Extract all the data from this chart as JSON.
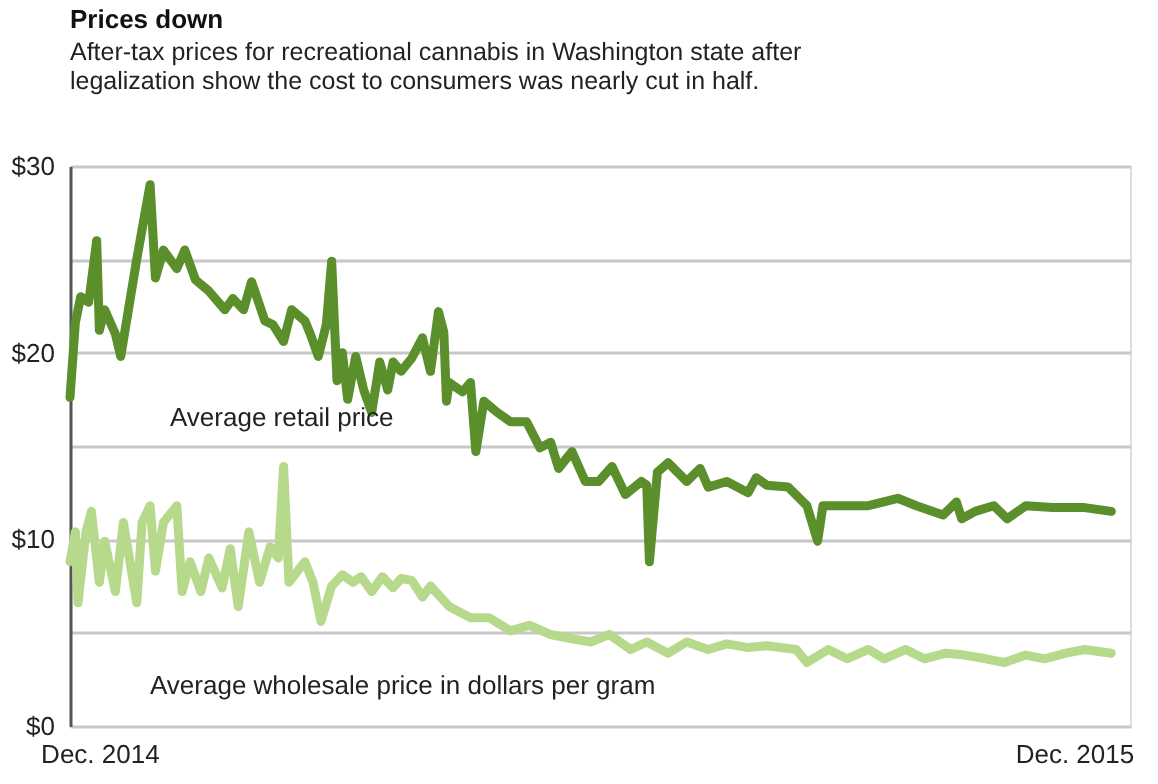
{
  "chart_data": {
    "type": "line",
    "title": "Prices down",
    "subtitle": "After-tax prices for recreational cannabis in Washington state after legalization show the cost to consumers was nearly cut in half.",
    "xlim": [
      "2014-11-20",
      "2015-12-22"
    ],
    "xticks": [
      {
        "value": "2014-12-01",
        "label": "Dec. 2014"
      },
      {
        "value": "2015-12-01",
        "label": "Dec. 2015"
      }
    ],
    "ylim": [
      0,
      30
    ],
    "yticks": [
      {
        "value": 0,
        "label": "$0"
      },
      {
        "value": 5,
        "label": null
      },
      {
        "value": 10,
        "label": "$10"
      },
      {
        "value": 15,
        "label": null
      },
      {
        "value": 20,
        "label": "$20"
      },
      {
        "value": 25,
        "label": null
      },
      {
        "value": 30,
        "label": "$30"
      }
    ],
    "grid": "y",
    "marker": "none",
    "line_style": "solid",
    "series": [
      {
        "name": "Average retail price",
        "color": "#5b8f2c",
        "x": [
          "2014-11-20",
          "2014-11-22",
          "2014-11-24",
          "2014-11-27",
          "2014-11-30",
          "2014-12-01",
          "2014-12-03",
          "2014-12-07",
          "2014-12-09",
          "2014-12-15",
          "2014-12-20",
          "2014-12-22",
          "2014-12-25",
          "2014-12-30",
          "2015-01-02",
          "2015-01-06",
          "2015-01-11",
          "2015-01-17",
          "2015-01-20",
          "2015-01-24",
          "2015-01-27",
          "2015-02-01",
          "2015-02-04",
          "2015-02-08",
          "2015-02-11",
          "2015-02-16",
          "2015-02-18",
          "2015-02-21",
          "2015-02-24",
          "2015-02-26",
          "2015-02-28",
          "2015-03-02",
          "2015-03-04",
          "2015-03-07",
          "2015-03-10",
          "2015-03-13",
          "2015-03-16",
          "2015-03-19",
          "2015-03-21",
          "2015-03-24",
          "2015-03-28",
          "2015-04-01",
          "2015-04-04",
          "2015-04-07",
          "2015-04-09",
          "2015-04-10",
          "2015-04-11",
          "2015-04-16",
          "2015-04-19",
          "2015-04-21",
          "2015-04-24",
          "2015-04-29",
          "2015-05-04",
          "2015-05-10",
          "2015-05-15",
          "2015-05-19",
          "2015-05-22",
          "2015-05-27",
          "2015-06-01",
          "2015-06-06",
          "2015-06-11",
          "2015-06-16",
          "2015-06-22",
          "2015-06-24",
          "2015-06-25",
          "2015-06-28",
          "2015-07-02",
          "2015-07-09",
          "2015-07-14",
          "2015-07-17",
          "2015-07-24",
          "2015-08-01",
          "2015-08-04",
          "2015-08-08",
          "2015-08-16",
          "2015-08-23",
          "2015-08-27",
          "2015-08-29",
          "2015-09-15",
          "2015-09-26",
          "2015-10-03",
          "2015-10-13",
          "2015-10-18",
          "2015-10-20",
          "2015-10-25",
          "2015-11-01",
          "2015-11-06",
          "2015-11-13",
          "2015-11-23",
          "2015-12-05",
          "2015-12-15"
        ],
        "values": [
          17.6,
          21.6,
          23.0,
          22.7,
          26.0,
          21.2,
          22.3,
          21.0,
          19.8,
          25.0,
          29.0,
          24.0,
          25.5,
          24.5,
          25.5,
          23.9,
          23.3,
          22.3,
          22.9,
          22.3,
          23.8,
          21.7,
          21.5,
          20.6,
          22.3,
          21.7,
          21.0,
          19.8,
          21.5,
          24.9,
          18.5,
          20.0,
          17.5,
          19.8,
          18.0,
          16.8,
          19.5,
          18.0,
          19.5,
          19.0,
          19.7,
          20.8,
          19.0,
          22.2,
          21.1,
          17.4,
          18.4,
          17.9,
          18.4,
          14.7,
          17.4,
          16.8,
          16.3,
          16.3,
          14.9,
          15.2,
          13.8,
          14.7,
          13.1,
          13.1,
          13.9,
          12.4,
          13.1,
          12.9,
          8.8,
          13.6,
          14.1,
          13.1,
          13.8,
          12.8,
          13.1,
          12.5,
          13.3,
          12.9,
          12.8,
          11.8,
          9.9,
          11.8,
          11.8,
          12.2,
          11.8,
          11.3,
          12.0,
          11.1,
          11.5,
          11.8,
          11.1,
          11.8,
          11.7,
          11.7,
          11.5
        ]
      },
      {
        "name": "Average wholesale price in dollars per gram",
        "color": "#b6d98b",
        "x": [
          "2014-11-20",
          "2014-11-22",
          "2014-11-23",
          "2014-11-26",
          "2014-11-28",
          "2014-12-01",
          "2014-12-03",
          "2014-12-07",
          "2014-12-10",
          "2014-12-15",
          "2014-12-17",
          "2014-12-20",
          "2014-12-22",
          "2014-12-25",
          "2014-12-30",
          "2015-01-01",
          "2015-01-04",
          "2015-01-08",
          "2015-01-11",
          "2015-01-16",
          "2015-01-19",
          "2015-01-22",
          "2015-01-26",
          "2015-01-30",
          "2015-02-03",
          "2015-02-06",
          "2015-02-08",
          "2015-02-10",
          "2015-02-16",
          "2015-02-19",
          "2015-02-22",
          "2015-02-26",
          "2015-03-02",
          "2015-03-06",
          "2015-03-09",
          "2015-03-13",
          "2015-03-17",
          "2015-03-21",
          "2015-03-24",
          "2015-03-28",
          "2015-04-01",
          "2015-04-04",
          "2015-04-11",
          "2015-04-19",
          "2015-04-26",
          "2015-05-04",
          "2015-05-11",
          "2015-05-19",
          "2015-05-26",
          "2015-06-03",
          "2015-06-10",
          "2015-06-18",
          "2015-06-24",
          "2015-07-02",
          "2015-07-09",
          "2015-07-17",
          "2015-07-24",
          "2015-08-01",
          "2015-08-08",
          "2015-08-19",
          "2015-08-23",
          "2015-08-31",
          "2015-09-07",
          "2015-09-15",
          "2015-09-21",
          "2015-09-29",
          "2015-10-06",
          "2015-10-14",
          "2015-10-21",
          "2015-10-29",
          "2015-11-05",
          "2015-11-13",
          "2015-11-20",
          "2015-11-28",
          "2015-12-05",
          "2015-12-15"
        ],
        "values": [
          8.8,
          10.4,
          6.6,
          10.4,
          11.5,
          7.7,
          9.9,
          7.2,
          10.9,
          6.6,
          10.9,
          11.8,
          8.3,
          10.9,
          11.8,
          7.2,
          8.8,
          7.2,
          9.0,
          7.4,
          9.5,
          6.4,
          10.4,
          7.7,
          9.6,
          9.0,
          13.9,
          7.7,
          8.8,
          7.7,
          5.6,
          7.5,
          8.1,
          7.7,
          8.0,
          7.2,
          8.0,
          7.4,
          7.9,
          7.8,
          6.9,
          7.5,
          6.4,
          5.8,
          5.8,
          5.1,
          5.4,
          4.9,
          4.7,
          4.5,
          4.9,
          4.1,
          4.5,
          3.9,
          4.5,
          4.1,
          4.4,
          4.2,
          4.3,
          4.1,
          3.4,
          4.1,
          3.6,
          4.1,
          3.6,
          4.1,
          3.6,
          3.9,
          3.8,
          3.6,
          3.4,
          3.8,
          3.6,
          3.9,
          4.1,
          3.9
        ]
      }
    ]
  }
}
